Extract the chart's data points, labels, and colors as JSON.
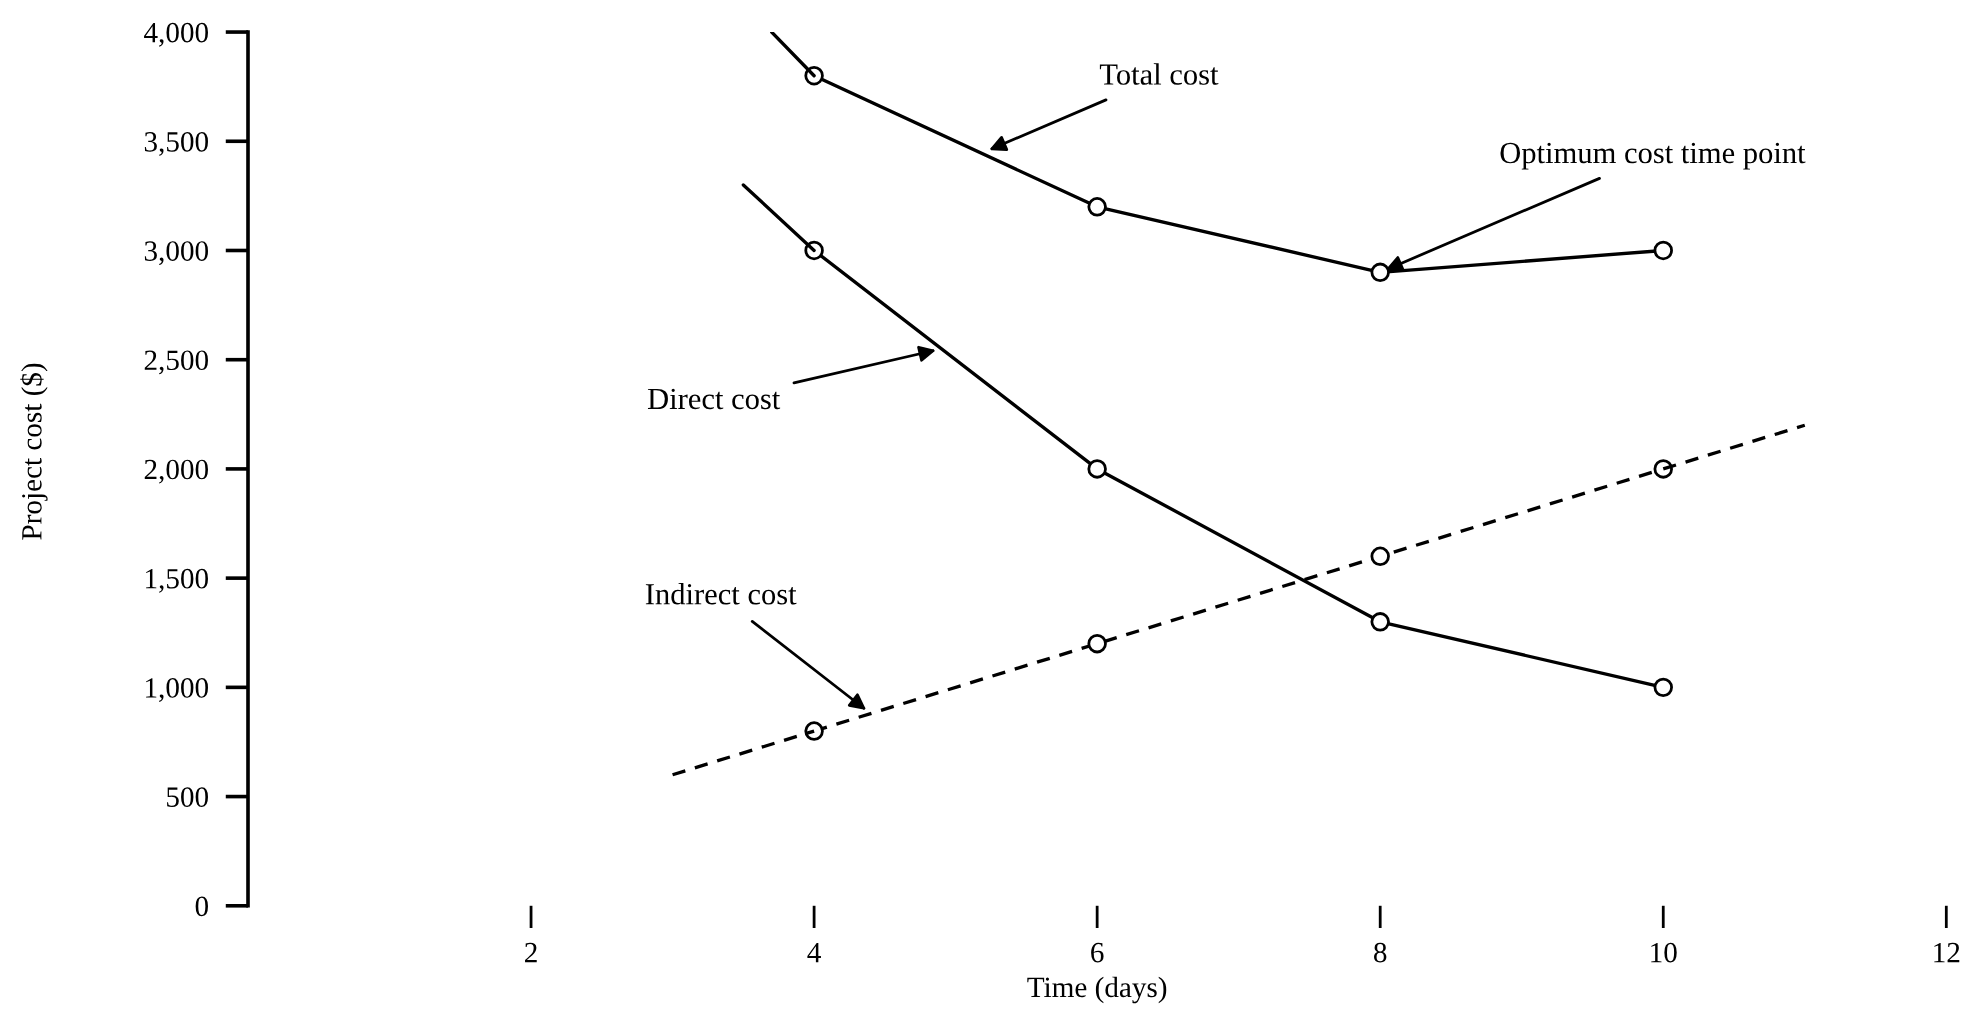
{
  "chart_data": {
    "type": "line",
    "xlabel": "Time (days)",
    "ylabel": "Project cost ($)",
    "xlim": [
      0,
      12
    ],
    "xticks": [
      2,
      4,
      6,
      8,
      10,
      12
    ],
    "ylim": [
      0,
      4000
    ],
    "yticks": [
      0,
      500,
      {
        "value": 1000,
        "label": "1,000"
      },
      {
        "value": 1500,
        "label": "1,500"
      },
      {
        "value": 2000,
        "label": "2,000"
      },
      {
        "value": 2500,
        "label": "2,500"
      },
      {
        "value": 3000,
        "label": "3,000"
      },
      {
        "value": 3500,
        "label": "3,500"
      },
      {
        "value": 4000,
        "label": "4,000"
      }
    ],
    "marker": "circle",
    "line_style": "solid",
    "series": [
      {
        "color": "#000000",
        "x": [
          4,
          6,
          8,
          10
        ],
        "values": [
          3800,
          3200,
          2900,
          3000
        ]
      },
      {
        "color": "#000000",
        "x": [
          4,
          6,
          8,
          10
        ],
        "values": [
          3000,
          2000,
          1300,
          1000
        ]
      },
      {
        "color": "#000000",
        "x": [
          4,
          6,
          8,
          10
        ],
        "values": [
          800,
          1200,
          1600,
          2000
        ],
        "line_style": "dashed"
      },
      {
        "color": "#000000",
        "x": [
          3.7,
          4
        ],
        "values": [
          4000,
          3800
        ],
        "marker": "none"
      },
      {
        "color": "#000000",
        "x": [
          3.5,
          4
        ],
        "values": [
          3300,
          3000
        ],
        "marker": "none"
      },
      {
        "color": "#000000",
        "x": [
          3,
          4
        ],
        "values": [
          600,
          800
        ],
        "marker": "none",
        "line_style": "dashed"
      },
      {
        "color": "#000000",
        "x": [
          10,
          11
        ],
        "values": [
          2000,
          2200
        ],
        "marker": "none",
        "line_style": "dashed"
      }
    ],
    "annotations": [
      {
        "text": "Total cost",
        "x": 5.2,
        "y": 3450
      },
      {
        "text": "Optimum cost time point",
        "x": 8,
        "y": 2900
      },
      {
        "text": "Direct cost",
        "x": 4.9,
        "y": 2550
      },
      {
        "text": "Indirect cost",
        "x": 4.4,
        "y": 880
      }
    ]
  }
}
